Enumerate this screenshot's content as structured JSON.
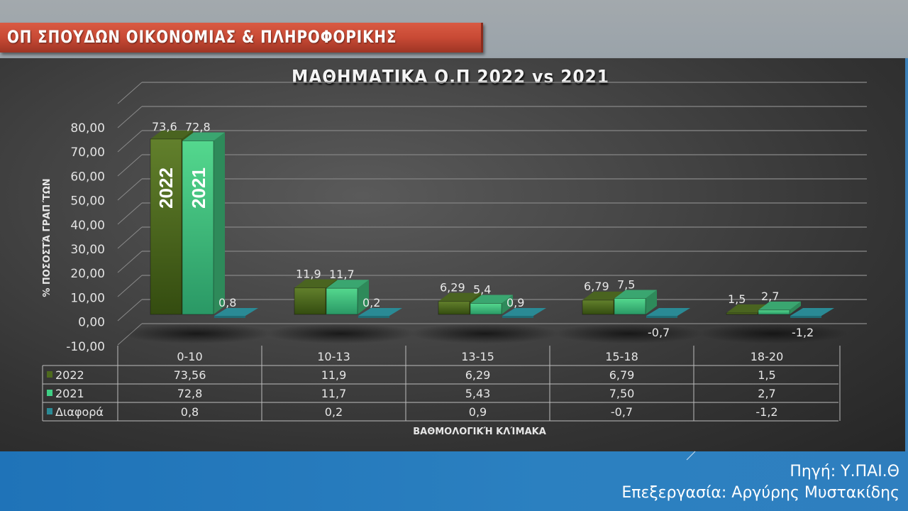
{
  "header": {
    "title": "ΟΠ ΣΠΟΥΔΩΝ ΟΙΚΟΝΟΜΙΑΣ & ΠΛΗΡΟΦΟΡΙΚΗΣ"
  },
  "footer": {
    "source": "Πηγή: Υ.ΠΑΙ.Θ",
    "credit": "Επεξεργασία: Αργύρης Μυστακίδης"
  },
  "colors": {
    "2022": "#4e6a1e",
    "2021": "#3fcf85",
    "diff": "#2a8a95",
    "header": "#c84a35",
    "band": "#2a7fc0"
  },
  "chart_data": {
    "type": "bar",
    "title": "ΜΑΘΗΜΑΤΙΚΑ  Ο.Π 2022 vs 2021",
    "xlabel": "ΒΑΘΜΟΛΟΓΙΚΉ ΚΛΊΜΑΚΑ",
    "ylabel": "% ΠΟΣΟΣΤΆ ΓΡΑΠ΄ΤΩΝ",
    "ylim": [
      -10,
      80
    ],
    "yticks": [
      "80,00",
      "70,00",
      "60,00",
      "50,00",
      "40,00",
      "30,00",
      "20,00",
      "10,00",
      "0,00",
      "-10,00"
    ],
    "grid": true,
    "legend_position": "data-table",
    "categories": [
      "0-10",
      "10-13",
      "13-15",
      "15-18",
      "18-20"
    ],
    "series": [
      {
        "name": "2022",
        "values": [
          73.56,
          11.9,
          6.29,
          6.79,
          1.5
        ],
        "labels": [
          "73,6",
          "11,9",
          "6,29",
          "6,79",
          "1,5"
        ],
        "table": [
          "73,56",
          "11,9",
          "6,29",
          "6,79",
          "1,5"
        ],
        "bar_text": "2022"
      },
      {
        "name": "2021",
        "values": [
          72.8,
          11.7,
          5.43,
          7.5,
          2.7
        ],
        "labels": [
          "72,8",
          "11,7",
          "5,4",
          "7,5",
          "2,7"
        ],
        "table": [
          "72,8",
          "11,7",
          "5,43",
          "7,50",
          "2,7"
        ],
        "bar_text": "2021"
      },
      {
        "name": "Διαφορά",
        "values": [
          0.8,
          0.2,
          0.9,
          -0.7,
          -1.2
        ],
        "labels": [
          "0,8",
          "0,2",
          "0,9",
          "-0,7",
          "-1,2"
        ],
        "table": [
          "0,8",
          "0,2",
          "0,9",
          "-0,7",
          "-1,2"
        ]
      }
    ]
  }
}
